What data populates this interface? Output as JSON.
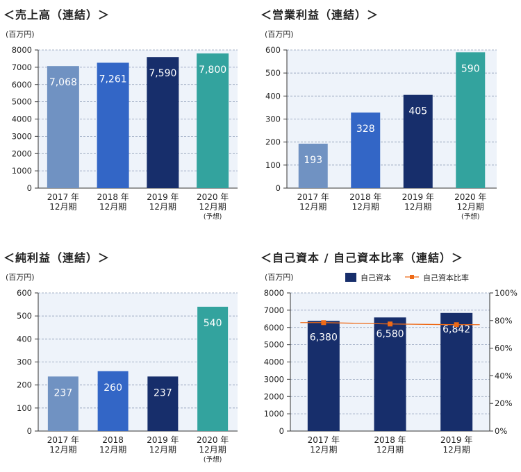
{
  "colors": {
    "bar2017": "#7092c2",
    "bar2018": "#3366c6",
    "bar2019": "#172e6b",
    "bar2020": "#33a39e",
    "plot_bg": "#eef3fa",
    "grid": "#8a9ab5",
    "line": "#ee6a17"
  },
  "chart_data": [
    {
      "type": "bar",
      "title": "＜売上高（連結）＞",
      "unit_label": "(百万円)",
      "ylim": [
        0,
        8000
      ],
      "yticks": [
        0,
        1000,
        2000,
        3000,
        4000,
        5000,
        6000,
        7000,
        8000
      ],
      "categories": [
        {
          "line1": "2017 年",
          "line2": "12月期",
          "line3": ""
        },
        {
          "line1": "2018 年",
          "line2": "12月期",
          "line3": ""
        },
        {
          "line1": "2019 年",
          "line2": "12月期",
          "line3": ""
        },
        {
          "line1": "2020 年",
          "line2": "12月期",
          "line3": "(予想)"
        }
      ],
      "values": [
        7068,
        7261,
        7590,
        7800
      ],
      "labels": [
        "7,068",
        "7,261",
        "7,590",
        "7,800"
      ],
      "grid": true
    },
    {
      "type": "bar",
      "title": "＜営業利益（連結）＞",
      "unit_label": "(百万円)",
      "ylim": [
        0,
        600
      ],
      "yticks": [
        0,
        100,
        200,
        300,
        400,
        500,
        600
      ],
      "categories": [
        {
          "line1": "2017 年",
          "line2": "12月期",
          "line3": ""
        },
        {
          "line1": "2018 年",
          "line2": "12月期",
          "line3": ""
        },
        {
          "line1": "2019 年",
          "line2": "12月期",
          "line3": ""
        },
        {
          "line1": "2020 年",
          "line2": "12月期",
          "line3": "(予想)"
        }
      ],
      "values": [
        193,
        328,
        405,
        590
      ],
      "labels": [
        "193",
        "328",
        "405",
        "590"
      ],
      "grid": true
    },
    {
      "type": "bar",
      "title": "＜純利益（連結）＞",
      "unit_label": "(百万円)",
      "ylim": [
        0,
        600
      ],
      "yticks": [
        0,
        100,
        200,
        300,
        400,
        500,
        600
      ],
      "categories": [
        {
          "line1": "2017 年",
          "line2": "12月期",
          "line3": ""
        },
        {
          "line1": "2018",
          "line2": "12月期",
          "line3": ""
        },
        {
          "line1": "2019 年",
          "line2": "12月期",
          "line3": ""
        },
        {
          "line1": "2020 年",
          "line2": "12月期",
          "line3": "(予想)"
        }
      ],
      "values": [
        237,
        260,
        237,
        540
      ],
      "labels": [
        "237",
        "260",
        "237",
        "540"
      ],
      "grid": true
    },
    {
      "type": "bar",
      "title": "＜自己資本 / 自己資本比率（連結）＞",
      "unit_label": "(百万円)",
      "ylim": [
        0,
        8000
      ],
      "yticks": [
        0,
        1000,
        2000,
        3000,
        4000,
        5000,
        6000,
        7000,
        8000
      ],
      "y2lim": [
        0,
        100
      ],
      "y2ticks": [
        "0%",
        "20%",
        "40%",
        "60%",
        "80%",
        "100%"
      ],
      "categories": [
        {
          "line1": "2017 年",
          "line2": "12月期",
          "line3": ""
        },
        {
          "line1": "2018 年",
          "line2": "12月期",
          "line3": ""
        },
        {
          "line1": "2019 年",
          "line2": "12月期",
          "line3": ""
        }
      ],
      "series": [
        {
          "name": "自己資本",
          "kind": "bar",
          "values": [
            6380,
            6580,
            6842
          ],
          "labels": [
            "6,380",
            "6,580",
            "6,842"
          ]
        },
        {
          "name": "自己資本比率",
          "kind": "line",
          "axis": "right",
          "values": [
            78.5,
            77.5,
            77.0
          ]
        }
      ],
      "legend": "top",
      "grid": true
    }
  ]
}
